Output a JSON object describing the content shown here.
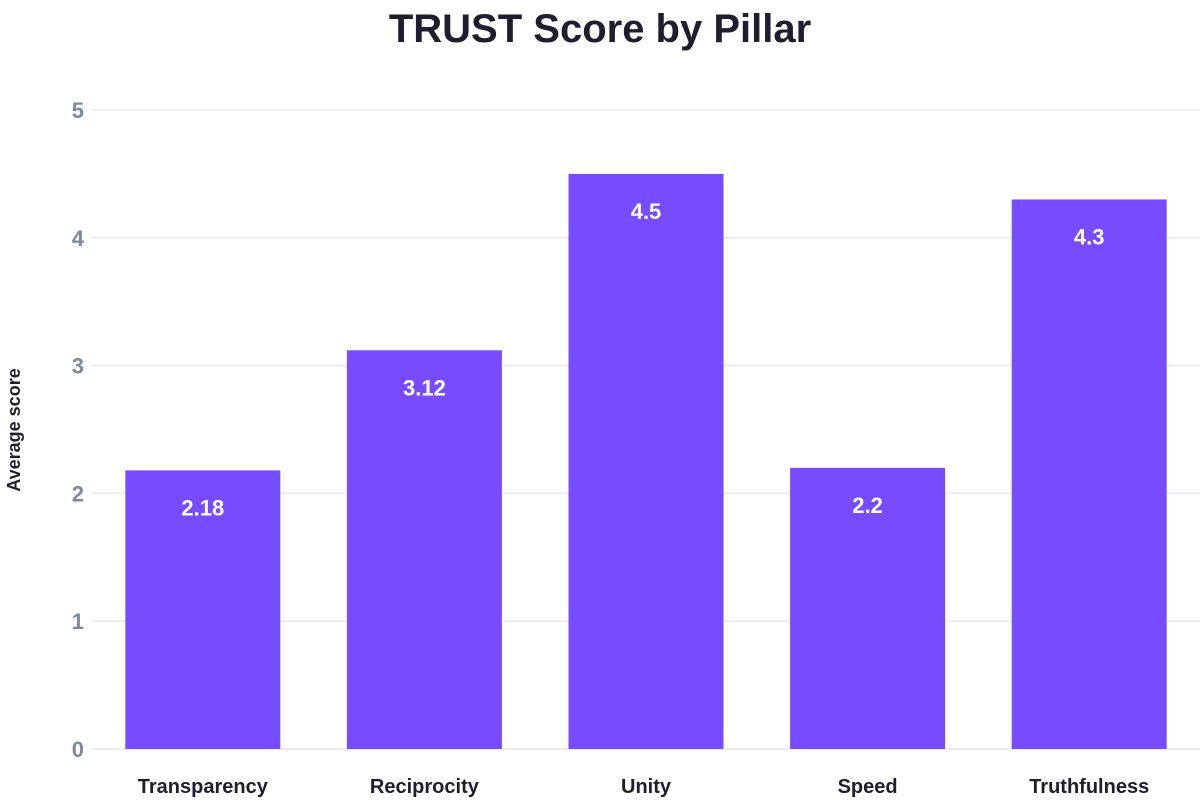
{
  "chart_data": {
    "type": "bar",
    "title": "TRUST Score by Pillar",
    "xlabel": "",
    "ylabel": "Average score",
    "categories": [
      "Transparency",
      "Reciprocity",
      "Unity",
      "Speed",
      "Truthfulness"
    ],
    "values": [
      2.18,
      3.12,
      4.5,
      2.2,
      4.3
    ],
    "value_labels": [
      "2.18",
      "3.12",
      "4.5",
      "2.2",
      "4.3"
    ],
    "ylim": [
      0,
      5
    ],
    "yticks": [
      0,
      1,
      2,
      3,
      4,
      5
    ],
    "grid": true,
    "legend": "none",
    "colors": {
      "bar": "#774cff",
      "title": "#1f1d2e",
      "y_tick": "#7d8a99",
      "grid": "#ececf0"
    }
  }
}
